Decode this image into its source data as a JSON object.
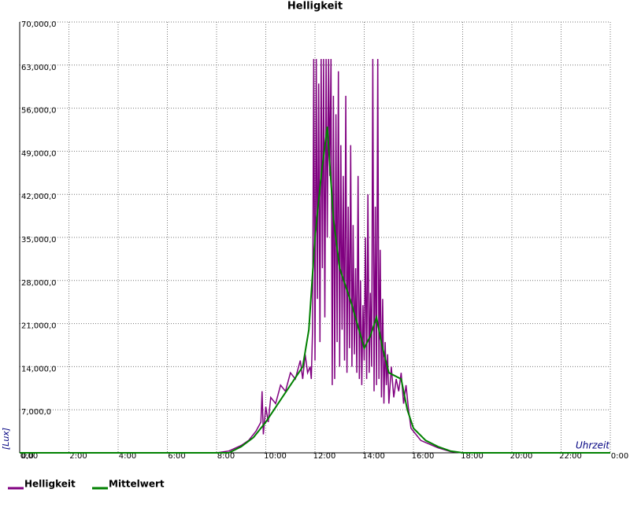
{
  "chart_data": {
    "type": "line",
    "title": "Helligkeit",
    "y_label": "[Lux]",
    "x_label": "Uhrzeit",
    "xlim": [
      0,
      24
    ],
    "ylim": [
      0,
      70000
    ],
    "xticks": [
      {
        "value": 0,
        "label": "0:00"
      },
      {
        "value": 2,
        "label": "2:00"
      },
      {
        "value": 4,
        "label": "4:00"
      },
      {
        "value": 6,
        "label": "6:00"
      },
      {
        "value": 8,
        "label": "8:00"
      },
      {
        "value": 10,
        "label": "10:00"
      },
      {
        "value": 12,
        "label": "12:00"
      },
      {
        "value": 14,
        "label": "14:00"
      },
      {
        "value": 16,
        "label": "16:00"
      },
      {
        "value": 18,
        "label": "18:00"
      },
      {
        "value": 20,
        "label": "20:00"
      },
      {
        "value": 22,
        "label": "22:00"
      },
      {
        "value": 24,
        "label": "0:00"
      }
    ],
    "yticks": [
      {
        "value": 0,
        "label": "0,0"
      },
      {
        "value": 7000,
        "label": "7,000,0"
      },
      {
        "value": 14000,
        "label": "14,000,0"
      },
      {
        "value": 21000,
        "label": "21,000,0"
      },
      {
        "value": 28000,
        "label": "28,000,0"
      },
      {
        "value": 35000,
        "label": "35,000,0"
      },
      {
        "value": 42000,
        "label": "42,000,0"
      },
      {
        "value": 49000,
        "label": "49,000,0"
      },
      {
        "value": 56000,
        "label": "56,000,0"
      },
      {
        "value": 63000,
        "label": "63,000,0"
      },
      {
        "value": 70000,
        "label": "70,000,0"
      }
    ],
    "grid": true,
    "series": [
      {
        "name": "Helligkeit",
        "color": "#800080",
        "x": [
          0,
          8,
          8.5,
          9,
          9.3,
          9.6,
          9.8,
          9.85,
          9.9,
          10,
          10.1,
          10.2,
          10.4,
          10.6,
          10.8,
          11,
          11.2,
          11.4,
          11.5,
          11.6,
          11.7,
          11.8,
          11.85,
          11.9,
          11.95,
          12,
          12.05,
          12.1,
          12.15,
          12.2,
          12.25,
          12.3,
          12.35,
          12.4,
          12.45,
          12.5,
          12.55,
          12.6,
          12.65,
          12.7,
          12.75,
          12.8,
          12.85,
          12.9,
          12.95,
          13,
          13.05,
          13.1,
          13.15,
          13.2,
          13.25,
          13.3,
          13.35,
          13.4,
          13.45,
          13.5,
          13.55,
          13.6,
          13.65,
          13.7,
          13.75,
          13.8,
          13.85,
          13.9,
          13.95,
          14,
          14.05,
          14.1,
          14.15,
          14.2,
          14.25,
          14.3,
          14.35,
          14.4,
          14.45,
          14.5,
          14.55,
          14.6,
          14.65,
          14.7,
          14.75,
          14.8,
          14.85,
          14.9,
          14.95,
          15,
          15.1,
          15.2,
          15.3,
          15.4,
          15.5,
          15.6,
          15.7,
          15.8,
          15.9,
          16,
          16.3,
          16.6,
          17,
          17.5,
          18,
          24
        ],
        "values": [
          0,
          0,
          300,
          1200,
          2000,
          3500,
          5000,
          10000,
          3000,
          7500,
          5000,
          9000,
          8000,
          11000,
          10000,
          13000,
          12000,
          15000,
          12000,
          16000,
          13000,
          14000,
          12000,
          20000,
          64000,
          15000,
          64000,
          25000,
          60000,
          18000,
          64000,
          30000,
          64000,
          22000,
          64000,
          35000,
          64000,
          45000,
          64000,
          11000,
          58000,
          12000,
          55000,
          18000,
          62000,
          14000,
          50000,
          20000,
          45000,
          15000,
          58000,
          13000,
          40000,
          17000,
          50000,
          14000,
          37000,
          16000,
          30000,
          13000,
          45000,
          12000,
          28000,
          11000,
          24000,
          15000,
          35000,
          12000,
          42000,
          13000,
          26000,
          14000,
          64000,
          10000,
          40000,
          11000,
          64000,
          12000,
          33000,
          9000,
          25000,
          8000,
          18000,
          11000,
          16000,
          8000,
          14000,
          9000,
          12000,
          10000,
          13000,
          8000,
          11000,
          7000,
          4000,
          3500,
          2000,
          1500,
          800,
          200,
          0,
          0
        ]
      },
      {
        "name": "Mittelwert",
        "color": "#008000",
        "x": [
          0,
          8.5,
          9,
          9.5,
          10,
          10.5,
          11,
          11.5,
          11.75,
          12,
          12.25,
          12.5,
          12.75,
          13,
          13.5,
          14,
          14.25,
          14.5,
          14.75,
          15,
          15.5,
          15.75,
          16,
          16.5,
          17,
          17.5,
          18,
          24
        ],
        "values": [
          0,
          0,
          1000,
          2500,
          5000,
          8000,
          11000,
          14000,
          20000,
          35000,
          45000,
          53000,
          38000,
          30000,
          24000,
          17000,
          19000,
          22000,
          17000,
          13000,
          12000,
          7000,
          4000,
          2000,
          1000,
          300,
          0,
          0
        ]
      }
    ]
  }
}
